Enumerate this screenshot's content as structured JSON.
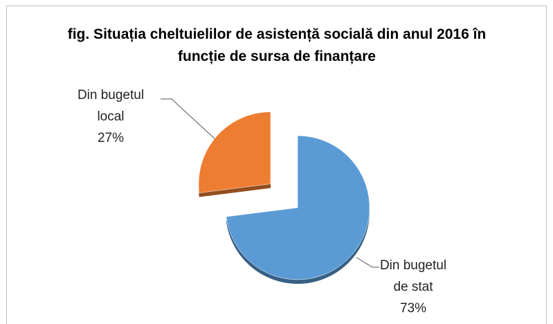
{
  "chart_data": {
    "type": "pie",
    "title": "fig. Situația cheltuielilor de asistență socială din anul 2016  în funcție de sursa de finanțare",
    "categories": [
      "Din bugetul de stat",
      "Din bugetul local"
    ],
    "values": [
      73,
      27
    ],
    "value_labels": [
      "73%",
      "27%"
    ],
    "colors": [
      "#5b9bd5",
      "#ed7d31"
    ]
  }
}
